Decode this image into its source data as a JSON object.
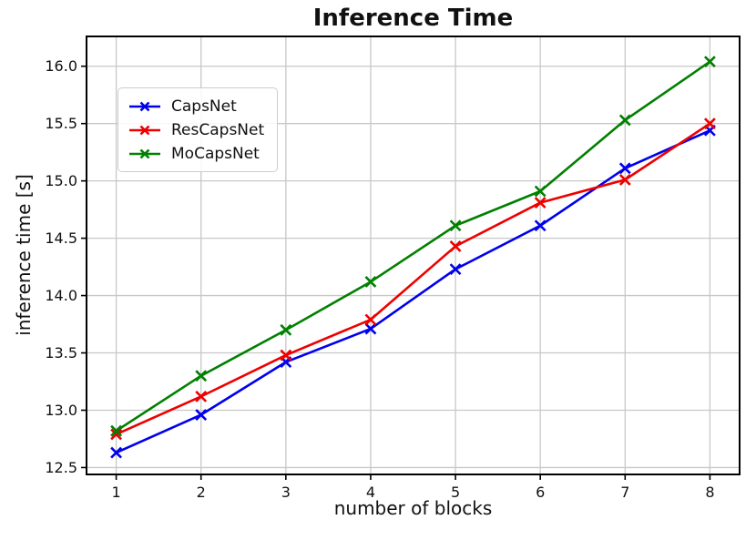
{
  "chart_data": {
    "type": "line",
    "title": "Inference Time",
    "xlabel": "number of blocks",
    "ylabel": "inference time [s]",
    "x": [
      1,
      2,
      3,
      4,
      5,
      6,
      7,
      8
    ],
    "series": [
      {
        "name": "CapsNet",
        "color": "#0000ee",
        "marker": "x",
        "values": [
          12.63,
          12.96,
          13.42,
          13.71,
          14.23,
          14.61,
          15.11,
          15.44
        ]
      },
      {
        "name": "ResCapsNet",
        "color": "#ee0000",
        "marker": "x",
        "values": [
          12.79,
          13.12,
          13.48,
          13.79,
          14.43,
          14.81,
          15.01,
          15.5
        ]
      },
      {
        "name": "MoCapsNet",
        "color": "#008000",
        "marker": "x",
        "values": [
          12.82,
          13.3,
          13.7,
          14.12,
          14.61,
          14.91,
          15.53,
          16.04
        ]
      }
    ],
    "xlim": [
      0.65,
      8.35
    ],
    "ylim": [
      12.44,
      16.26
    ],
    "xticks": {
      "values": [
        1,
        2,
        3,
        4,
        5,
        6,
        7,
        8
      ],
      "labels": [
        "1",
        "2",
        "3",
        "4",
        "5",
        "6",
        "7",
        "8"
      ]
    },
    "yticks": {
      "values": [
        12.5,
        13.0,
        13.5,
        14.0,
        14.5,
        15.0,
        15.5,
        16.0
      ],
      "labels": [
        "12.5",
        "13.0",
        "13.5",
        "14.0",
        "14.5",
        "15.0",
        "15.5",
        "16.0"
      ]
    },
    "grid": true,
    "grid_color": "#c8c8c8",
    "axis_color": "#000000",
    "legend": {
      "position": "upper-left"
    }
  }
}
